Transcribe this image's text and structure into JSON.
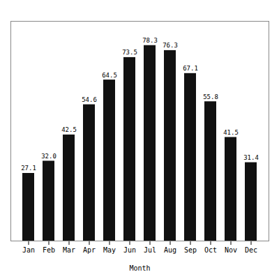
{
  "chart_data": {
    "type": "bar",
    "x_label": "Month",
    "categories": [
      "Jan",
      "Feb",
      "Mar",
      "Apr",
      "May",
      "Jun",
      "Jul",
      "Aug",
      "Sep",
      "Oct",
      "Nov",
      "Dec"
    ],
    "values": [
      27.1,
      32.0,
      42.5,
      54.6,
      64.5,
      73.5,
      78.3,
      76.3,
      67.1,
      55.8,
      41.5,
      31.4
    ],
    "value_labels": [
      "27.1",
      "32.0",
      "42.5",
      "54.6",
      "64.5",
      "73.5",
      "78.3",
      "76.3",
      "67.1",
      "55.8",
      "41.5",
      "31.4"
    ],
    "color": "#111111",
    "ylim": [
      0,
      88
    ],
    "data_labels": true,
    "tick_labels": "x",
    "grid": false
  }
}
